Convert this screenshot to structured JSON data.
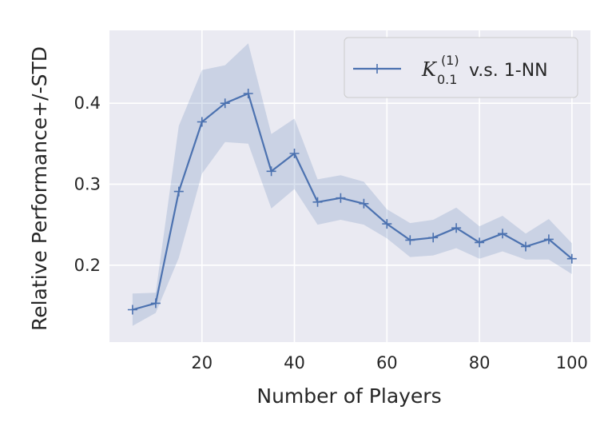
{
  "chart_data": {
    "type": "line",
    "xlabel": "Number of Players",
    "ylabel": "Relative Performance+/-STD",
    "xlim": [
      0,
      104
    ],
    "ylim": [
      0.105,
      0.49
    ],
    "xticks": [
      20,
      40,
      60,
      80,
      100
    ],
    "yticks": [
      0.2,
      0.3,
      0.4
    ],
    "ytick_labels": [
      "0.2",
      "0.3",
      "0.4"
    ],
    "grid": true,
    "legend_position": "top-right",
    "colors": {
      "background": "#eaeaf2",
      "grid": "#ffffff",
      "line": "#4c72b0",
      "band": "#4c72b0"
    },
    "series": [
      {
        "legend": {
          "symbol": "K",
          "superscript": "(1)",
          "subscript": "0.1",
          "suffix": "v.s. 1-NN"
        },
        "x": [
          5,
          10,
          15,
          20,
          25,
          30,
          35,
          40,
          45,
          50,
          55,
          60,
          65,
          70,
          75,
          80,
          85,
          90,
          95,
          100
        ],
        "y": [
          0.145,
          0.153,
          0.291,
          0.377,
          0.4,
          0.412,
          0.316,
          0.338,
          0.278,
          0.283,
          0.276,
          0.251,
          0.231,
          0.234,
          0.246,
          0.228,
          0.239,
          0.223,
          0.232,
          0.208
        ],
        "upper": [
          0.165,
          0.166,
          0.372,
          0.441,
          0.447,
          0.474,
          0.362,
          0.381,
          0.306,
          0.311,
          0.303,
          0.269,
          0.252,
          0.256,
          0.271,
          0.248,
          0.261,
          0.239,
          0.257,
          0.227
        ],
        "lower": [
          0.125,
          0.141,
          0.209,
          0.313,
          0.352,
          0.35,
          0.27,
          0.294,
          0.25,
          0.256,
          0.25,
          0.233,
          0.21,
          0.212,
          0.221,
          0.208,
          0.217,
          0.207,
          0.207,
          0.189
        ]
      }
    ]
  }
}
